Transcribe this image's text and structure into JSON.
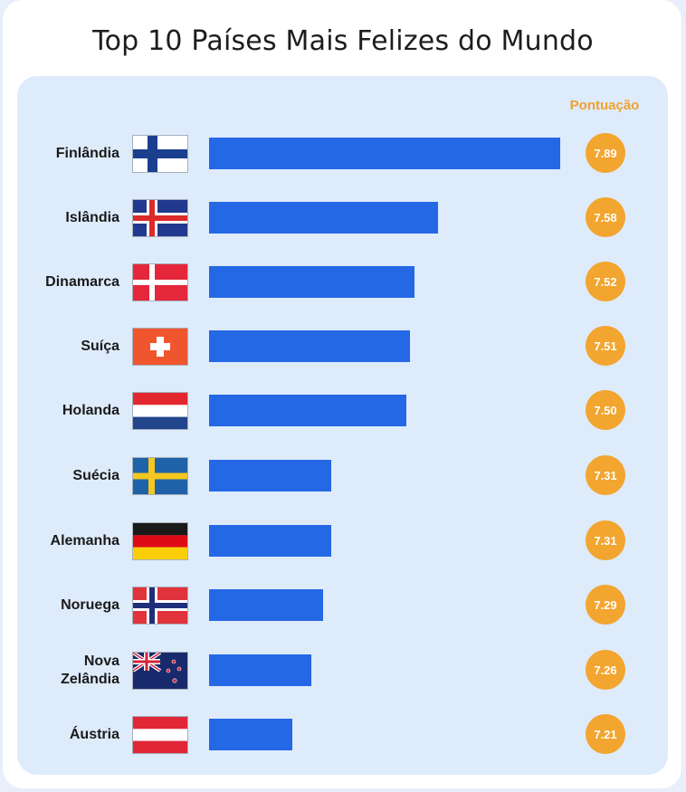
{
  "title": "Top 10 Países Mais Felizes do Mundo",
  "score_header": "Pontuação",
  "colors": {
    "bar": "#2468e6",
    "badge": "#f2a52f",
    "panel": "#deebfb",
    "header": "#f0a22e"
  },
  "chart_data": {
    "type": "bar",
    "orientation": "horizontal",
    "title": "Top 10 Países Mais Felizes do Mundo",
    "categories": [
      "Finlândia",
      "Islândia",
      "Dinamarca",
      "Suíça",
      "Holanda",
      "Suécia",
      "Alemanha",
      "Noruega",
      "Nova Zelândia",
      "Áustria"
    ],
    "values": [
      7.89,
      7.58,
      7.52,
      7.51,
      7.5,
      7.31,
      7.31,
      7.29,
      7.26,
      7.21
    ],
    "labels": [
      "7.89",
      "7.58",
      "7.52",
      "7.51",
      "7.50",
      "7.31",
      "7.31",
      "7.29",
      "7.26",
      "7.21"
    ],
    "flag_icons": [
      "finland-flag-icon",
      "iceland-flag-icon",
      "denmark-flag-icon",
      "switzerland-flag-icon",
      "netherlands-flag-icon",
      "sweden-flag-icon",
      "germany-flag-icon",
      "norway-flag-icon",
      "new-zealand-flag-icon",
      "austria-flag-icon"
    ],
    "value_column_label": "Pontuação",
    "grid": false
  }
}
